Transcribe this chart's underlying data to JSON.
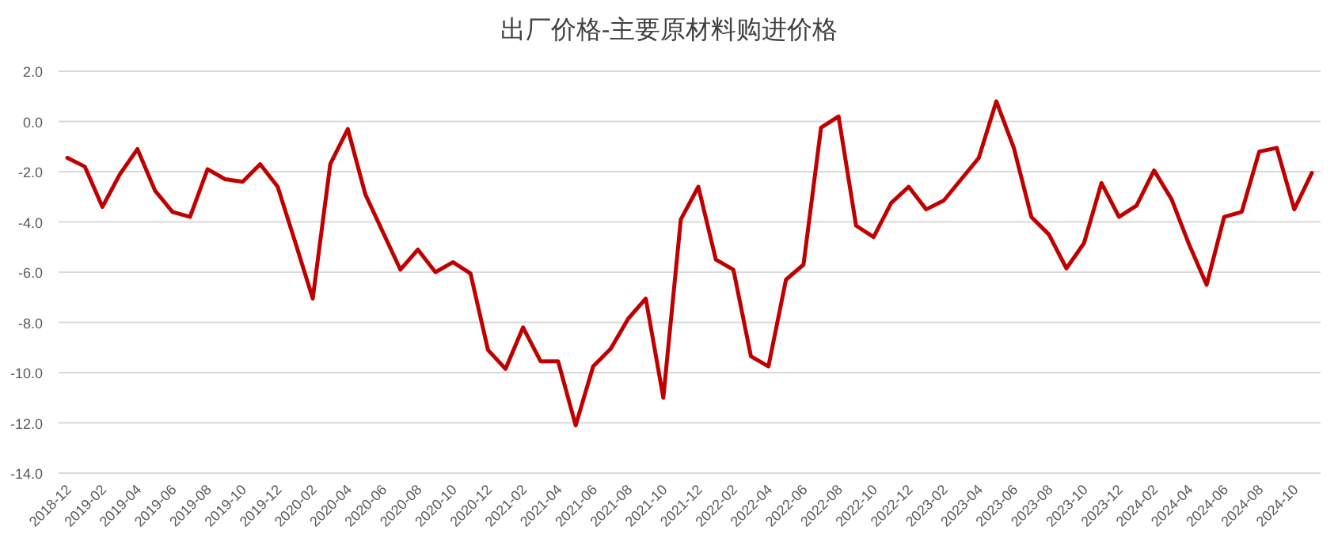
{
  "chart_data": {
    "type": "line",
    "title": "出厂价格-主要原材料购进价格",
    "categories": [
      "2018-12",
      null,
      "2019-02",
      null,
      "2019-04",
      null,
      "2019-06",
      null,
      "2019-08",
      null,
      "2019-10",
      null,
      "2019-12",
      null,
      "2020-02",
      null,
      "2020-04",
      null,
      "2020-06",
      null,
      "2020-08",
      null,
      "2020-10",
      null,
      "2020-12",
      null,
      "2021-02",
      null,
      "2021-04",
      null,
      "2021-06",
      null,
      "2021-08",
      null,
      "2021-10",
      null,
      "2021-12",
      null,
      "2022-02",
      null,
      "2022-04",
      null,
      "2022-06",
      null,
      "2022-08",
      null,
      "2022-10",
      null,
      "2022-12",
      null,
      "2023-02",
      null,
      "2023-04",
      null,
      "2023-06",
      null,
      "2023-08",
      null,
      "2023-10",
      null,
      "2023-12",
      null,
      "2024-02",
      null,
      "2024-04",
      null,
      "2024-06",
      null,
      "2024-08",
      null,
      "2024-10",
      null
    ],
    "series": [
      {
        "color": "#c00000",
        "values": [
          -1.45,
          -1.8,
          -3.4,
          -2.1,
          -1.1,
          -2.75,
          -3.6,
          -3.8,
          -1.9,
          -2.3,
          -2.4,
          -1.7,
          -2.6,
          -4.8,
          -7.05,
          -1.7,
          -0.3,
          -2.9,
          -4.4,
          -5.9,
          -5.1,
          -6.0,
          -5.6,
          -6.05,
          -9.1,
          -9.85,
          -8.2,
          -9.55,
          -9.55,
          -12.1,
          -9.75,
          -9.05,
          -7.85,
          -7.05,
          -11.0,
          -3.9,
          -2.6,
          -5.5,
          -5.9,
          -9.35,
          -9.75,
          -6.3,
          -5.7,
          -0.25,
          0.2,
          -4.15,
          -4.6,
          -3.25,
          -2.6,
          -3.5,
          -3.15,
          -2.3,
          -1.45,
          0.8,
          -1.05,
          -3.8,
          -4.5,
          -5.85,
          -4.85,
          -2.45,
          -3.8,
          -3.35,
          -1.95,
          -3.1,
          -4.9,
          -6.5,
          -3.8,
          -3.6,
          -1.2,
          -1.05,
          -3.5,
          -2.05
        ]
      }
    ],
    "ylim": [
      -14,
      2
    ],
    "yticks": [
      {
        "value": 2,
        "label": "2.0"
      },
      {
        "value": 0,
        "label": "0.0"
      },
      {
        "value": -2,
        "label": "-2.0"
      },
      {
        "value": -4,
        "label": "-4.0"
      },
      {
        "value": -6,
        "label": "-6.0"
      },
      {
        "value": -8,
        "label": "-8.0"
      },
      {
        "value": -10,
        "label": "-10.0"
      },
      {
        "value": -12,
        "label": "-12.0"
      },
      {
        "value": -14,
        "label": "-14.0"
      }
    ],
    "grid": "y"
  }
}
